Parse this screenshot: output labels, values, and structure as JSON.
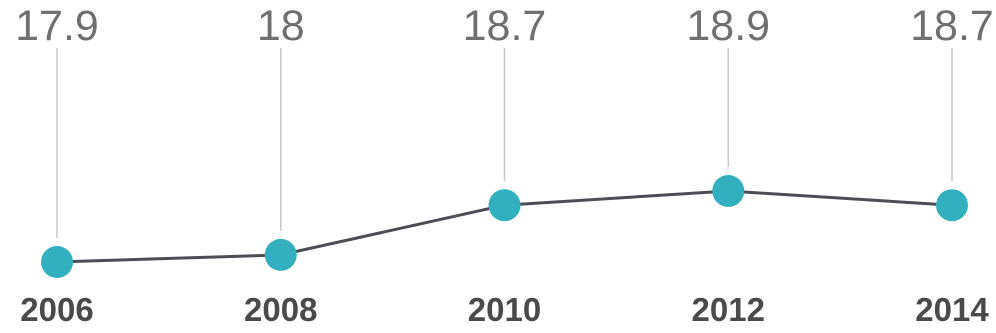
{
  "chart_data": {
    "type": "line",
    "categories": [
      "2006",
      "2008",
      "2010",
      "2012",
      "2014"
    ],
    "values": [
      17.9,
      18,
      18.7,
      18.9,
      18.7
    ],
    "value_labels": [
      "17.9",
      "18",
      "18.7",
      "18.9",
      "18.7"
    ],
    "grid": false,
    "colors": {
      "marker": "#33b0bf",
      "line": "#4d4d55",
      "leader": "#c8c8c8",
      "value_text": "#6f6f6f",
      "year_text": "#4a4a4a"
    }
  }
}
